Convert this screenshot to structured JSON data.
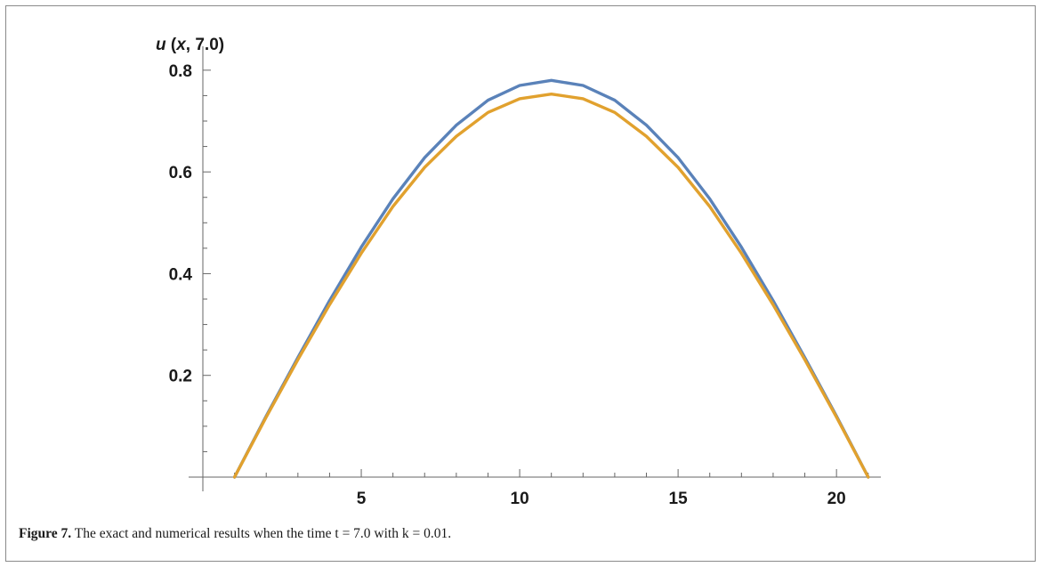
{
  "chart_data": {
    "type": "line",
    "title": "",
    "ylabel": "u (x, 7.0)",
    "xlabel": "",
    "xlim": [
      0,
      21.4
    ],
    "ylim": [
      0,
      0.84
    ],
    "x_ticks": [
      5,
      10,
      15,
      20
    ],
    "y_ticks": [
      0.2,
      0.4,
      0.6,
      0.8
    ],
    "grid": false,
    "series": [
      {
        "color": "#5a82b9",
        "x": [
          1,
          2,
          3,
          4,
          5,
          6,
          7,
          8,
          9,
          10,
          11,
          12,
          13,
          14,
          15,
          16,
          17,
          18,
          19,
          20,
          21
        ],
        "y": [
          0,
          0.12,
          0.235,
          0.347,
          0.452,
          0.547,
          0.628,
          0.692,
          0.741,
          0.77,
          0.78,
          0.77,
          0.741,
          0.692,
          0.628,
          0.547,
          0.452,
          0.347,
          0.235,
          0.12,
          0
        ]
      },
      {
        "color": "#e1a12e",
        "x": [
          1,
          2,
          3,
          4,
          5,
          6,
          7,
          8,
          9,
          10,
          11,
          12,
          13,
          14,
          15,
          16,
          17,
          18,
          19,
          20,
          21
        ],
        "y": [
          0,
          0.118,
          0.231,
          0.339,
          0.44,
          0.532,
          0.609,
          0.67,
          0.717,
          0.744,
          0.753,
          0.744,
          0.717,
          0.67,
          0.609,
          0.532,
          0.44,
          0.339,
          0.231,
          0.118,
          0
        ]
      }
    ]
  },
  "caption": {
    "label": "Figure 7.",
    "text": " The exact and numerical results when the time t = 7.0 with k = 0.01."
  }
}
